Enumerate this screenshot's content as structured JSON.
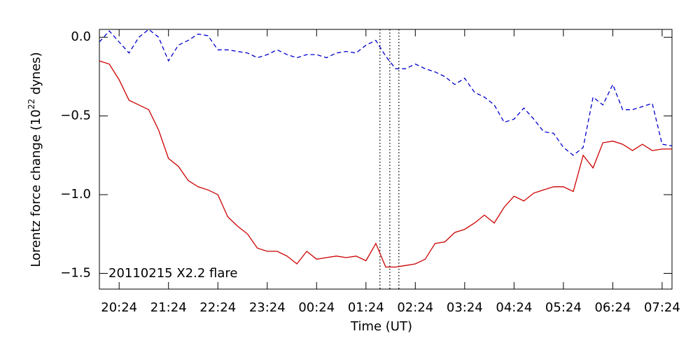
{
  "chart_data": {
    "type": "line",
    "xlabel": "Time (UT)",
    "ylabel": [
      "Lorentz force change (10",
      "22",
      " dynes)"
    ],
    "annotation": "20110215 X2.2 flare",
    "x": [
      "20:00",
      "20:12",
      "20:24",
      "20:36",
      "20:48",
      "21:00",
      "21:12",
      "21:24",
      "21:36",
      "21:48",
      "22:00",
      "22:12",
      "22:24",
      "22:36",
      "22:48",
      "23:00",
      "23:12",
      "23:24",
      "23:36",
      "23:48",
      "00:00",
      "00:12",
      "00:24",
      "00:36",
      "00:48",
      "01:00",
      "01:12",
      "01:24",
      "01:36",
      "01:48",
      "02:00",
      "02:12",
      "02:24",
      "02:36",
      "02:48",
      "03:00",
      "03:12",
      "03:24",
      "03:36",
      "03:48",
      "04:00",
      "04:12",
      "04:24",
      "04:36",
      "04:48",
      "05:00",
      "05:12",
      "05:24",
      "05:36",
      "05:48",
      "06:00",
      "06:12",
      "06:24",
      "06:36",
      "06:48",
      "07:00",
      "07:12",
      "07:24",
      "07:36"
    ],
    "series": [
      {
        "color": "#cc0000",
        "style": "solid",
        "values": [
          -0.15,
          -0.17,
          -0.27,
          -0.4,
          -0.43,
          -0.46,
          -0.59,
          -0.77,
          -0.82,
          -0.91,
          -0.95,
          -0.97,
          -1.0,
          -1.14,
          -1.2,
          -1.25,
          -1.34,
          -1.36,
          -1.36,
          -1.39,
          -1.44,
          -1.36,
          -1.41,
          -1.4,
          -1.39,
          -1.4,
          -1.39,
          -1.42,
          -1.31,
          -1.46,
          -1.46,
          -1.45,
          -1.44,
          -1.41,
          -1.31,
          -1.3,
          -1.24,
          -1.22,
          -1.18,
          -1.13,
          -1.18,
          -1.08,
          -1.01,
          -1.04,
          -0.99,
          -0.97,
          -0.95,
          -0.95,
          -0.98,
          -0.75,
          -0.83,
          -0.67,
          -0.66,
          -0.68,
          -0.72,
          -0.68,
          -0.72,
          -0.71,
          -0.71
        ]
      },
      {
        "color": "#0000cc",
        "style": "dashed",
        "values": [
          -0.03,
          0.04,
          -0.03,
          -0.1,
          0.0,
          0.05,
          0.0,
          -0.15,
          -0.05,
          -0.02,
          0.02,
          0.01,
          -0.08,
          -0.08,
          -0.09,
          -0.1,
          -0.13,
          -0.11,
          -0.08,
          -0.11,
          -0.13,
          -0.11,
          -0.11,
          -0.13,
          -0.1,
          -0.09,
          -0.1,
          -0.05,
          -0.02,
          -0.12,
          -0.2,
          -0.2,
          -0.17,
          -0.2,
          -0.22,
          -0.25,
          -0.3,
          -0.26,
          -0.35,
          -0.38,
          -0.43,
          -0.54,
          -0.52,
          -0.45,
          -0.52,
          -0.6,
          -0.61,
          -0.7,
          -0.75,
          -0.7,
          -0.38,
          -0.43,
          -0.3,
          -0.46,
          -0.46,
          -0.44,
          -0.42,
          -0.68,
          -0.69
        ]
      }
    ],
    "vlines": [
      "01:41",
      "01:53",
      "02:04"
    ],
    "xlim": [
      "20:00",
      "07:36"
    ],
    "xticks": [
      "20:24",
      "21:24",
      "22:24",
      "23:24",
      "00:24",
      "01:24",
      "02:24",
      "03:24",
      "04:24",
      "05:24",
      "06:24",
      "07:24"
    ],
    "ylim": [
      -1.6,
      0.05
    ],
    "yticks": [
      {
        "value": 0,
        "label": "0.0"
      },
      {
        "value": -0.5,
        "label": "−0.5"
      },
      {
        "value": -1.0,
        "label": "−1.0"
      },
      {
        "value": -1.5,
        "label": "−1.5"
      }
    ]
  }
}
